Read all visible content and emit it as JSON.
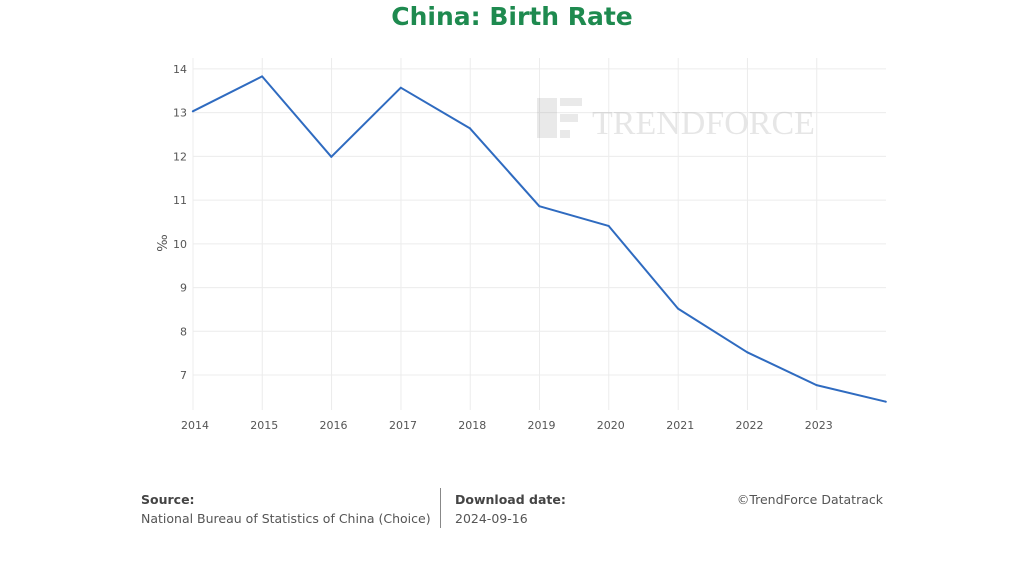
{
  "chart_data": {
    "type": "line",
    "title": "China: Birth Rate",
    "ylabel": "‰",
    "xlabel": "",
    "x": [
      "2013-12-31",
      "2014-12-31",
      "2015-12-31",
      "2016-12-31",
      "2017-12-31",
      "2018-12-31",
      "2019-12-31",
      "2020-12-31",
      "2021-12-31",
      "2022-12-31",
      "2023-12-31"
    ],
    "series": [
      {
        "values": [
          13.03,
          13.83,
          11.99,
          13.57,
          12.64,
          10.86,
          10.41,
          8.52,
          7.52,
          6.77,
          6.39
        ],
        "color": "#2f6bc0"
      }
    ],
    "xticks": [
      "2014",
      "2015",
      "2016",
      "2017",
      "2018",
      "2019",
      "2020",
      "2021",
      "2022",
      "2023"
    ],
    "yticks": [
      "7",
      "8",
      "9",
      "10",
      "11",
      "12",
      "13",
      "14"
    ],
    "ylim": [
      6.2,
      14.25
    ],
    "xlim": [
      "2014-01-01",
      "2024-01-01"
    ],
    "grid": true,
    "legend": "none"
  },
  "watermark": {
    "text": "TRENDFORCE"
  },
  "footer": {
    "source_label": "Source:",
    "source_value": "National Bureau of Statistics of China (Choice)",
    "download_label": "Download date:",
    "download_value": "2024-09-16",
    "copyright": "©TrendForce Datatrack"
  },
  "colors": {
    "title": "#1e8a4f",
    "line": "#2f6bc0"
  }
}
